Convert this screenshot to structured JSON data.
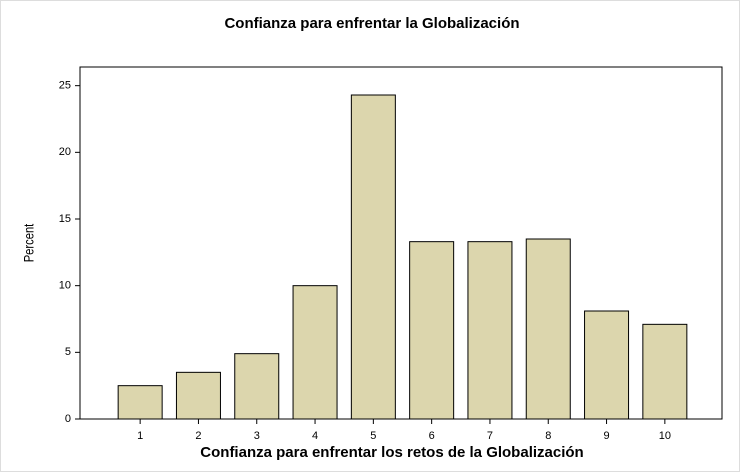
{
  "chart_data": {
    "type": "bar",
    "title": "Confianza para enfrentar la Globalización",
    "x_label": "Confianza para enfrentar los retos de la Globalización",
    "y_label": "Percent",
    "categories": [
      "1",
      "2",
      "3",
      "4",
      "5",
      "6",
      "7",
      "8",
      "9",
      "10"
    ],
    "values": [
      2.5,
      3.5,
      4.9,
      10.0,
      24.3,
      13.3,
      13.3,
      13.5,
      8.1,
      7.1
    ],
    "color": "#dcd6ad",
    "ylim": [
      0,
      26.4
    ],
    "yticks": [
      0,
      5,
      10,
      15,
      20,
      25
    ],
    "grid": false
  }
}
